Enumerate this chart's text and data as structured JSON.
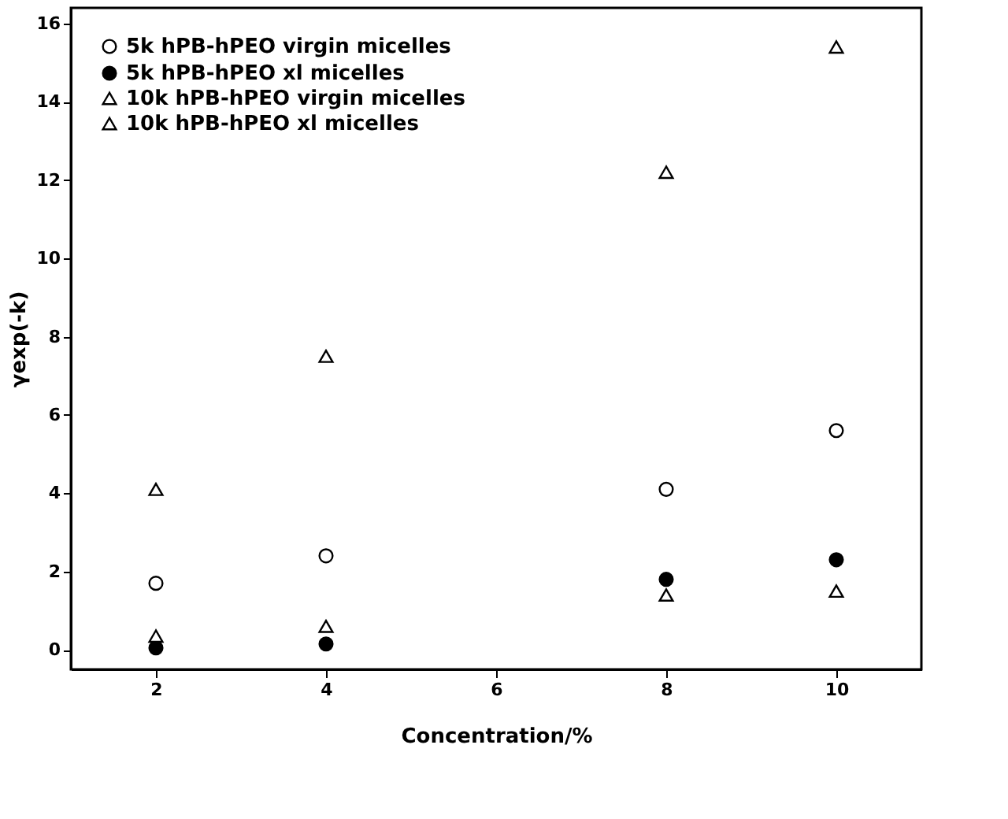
{
  "chart_data": {
    "type": "scatter",
    "xlabel": "Concentration/%",
    "ylabel": "γexp(-k)",
    "xlim": [
      1,
      11
    ],
    "ylim": [
      -0.5,
      16.4
    ],
    "xticks": [
      2,
      4,
      6,
      8,
      10
    ],
    "yticks": [
      0,
      2,
      4,
      6,
      8,
      10,
      12,
      14,
      16
    ],
    "grid": false,
    "legend": "top left",
    "x": [
      2,
      4,
      8,
      10
    ],
    "series": [
      {
        "name": "5k hPB-hPEO virgin micelles",
        "color": "#ffffff",
        "marker": "circle",
        "values": [
          1.7,
          2.4,
          4.1,
          5.6
        ]
      },
      {
        "name": "5k hPB-hPEO xl micelles",
        "color": "#000000",
        "marker": "circle",
        "values": [
          0.05,
          0.15,
          1.8,
          2.3
        ]
      },
      {
        "name": "10k hPB-hPEO virgin micelles",
        "color": "#ffffff",
        "marker": "triangle",
        "values": [
          4.1,
          7.5,
          12.2,
          15.4
        ]
      },
      {
        "name": "10k hPB-hPEO xl micelles",
        "color": "#ffffff",
        "marker": "triangle",
        "values": [
          0.35,
          0.6,
          1.4,
          1.5
        ]
      }
    ]
  }
}
